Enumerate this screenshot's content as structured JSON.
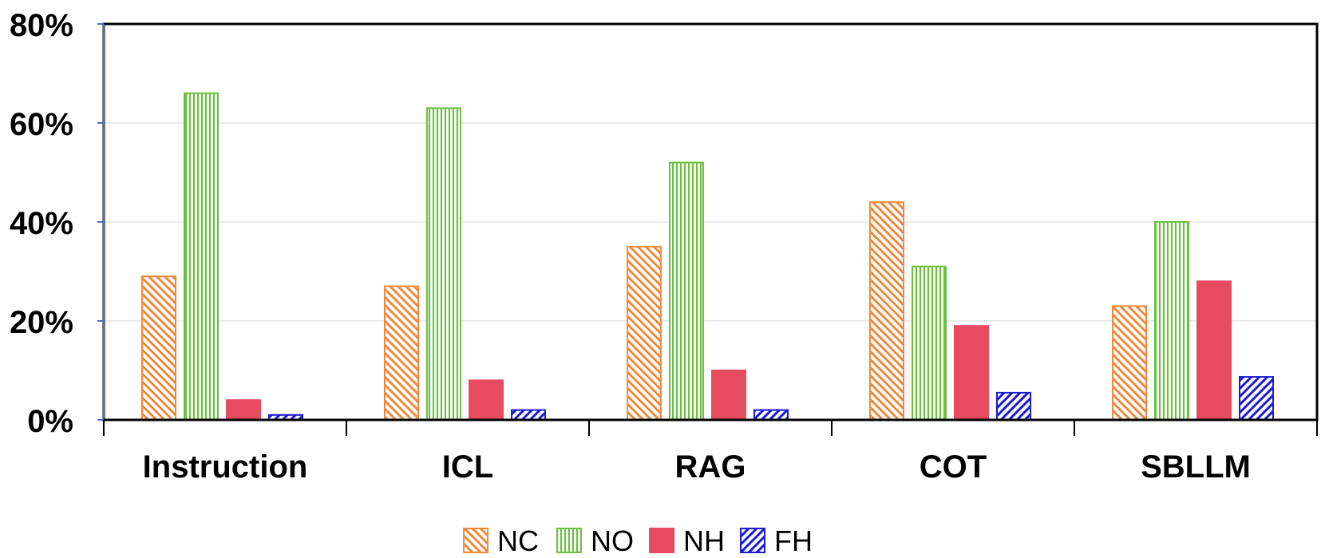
{
  "chart_data": {
    "type": "bar",
    "categories": [
      "Instruction",
      "ICL",
      "RAG",
      "COT",
      "SBLLM"
    ],
    "series": [
      {
        "name": "NC",
        "values": [
          29,
          27,
          35,
          44,
          23
        ],
        "color": "#f08a3c",
        "pattern": "diagonal-back"
      },
      {
        "name": "NO",
        "values": [
          66,
          63,
          52,
          31,
          40
        ],
        "color": "#6cbf3f",
        "pattern": "vertical"
      },
      {
        "name": "NH",
        "values": [
          4,
          8,
          10,
          19,
          28
        ],
        "color": "#e64b5f",
        "pattern": "solid"
      },
      {
        "name": "FH",
        "values": [
          1,
          2,
          2,
          5.5,
          8.7
        ],
        "color": "#1b1bd6",
        "pattern": "diagonal-forward"
      }
    ],
    "y_ticks": [
      "0%",
      "20%",
      "40%",
      "60%",
      "80%"
    ],
    "ylim": [
      0,
      80
    ],
    "title": "",
    "xlabel": "",
    "ylabel": "",
    "grid": true,
    "legend_position": "bottom-center"
  }
}
